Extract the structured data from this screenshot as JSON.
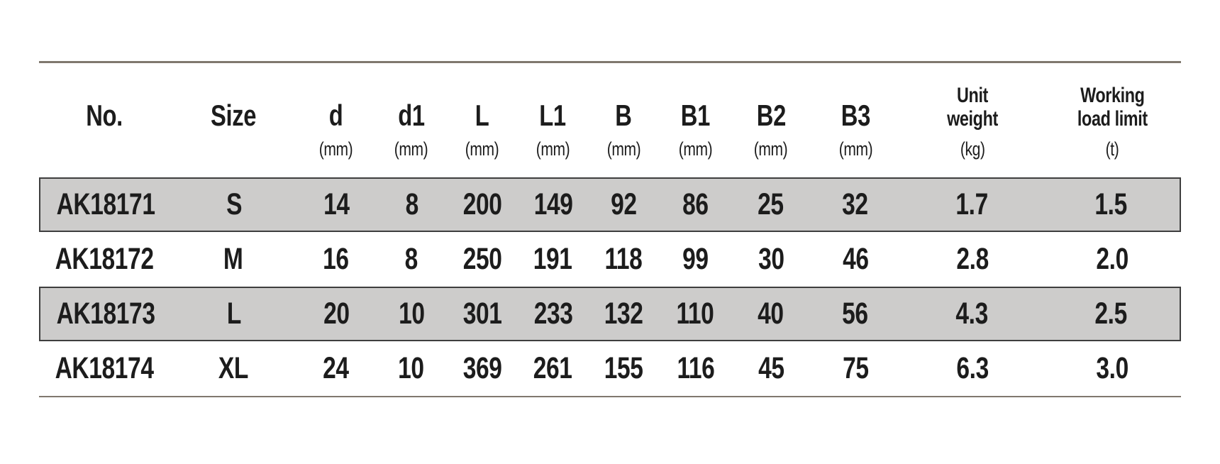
{
  "colors": {
    "background": "#ffffff",
    "stripe": "#cdcccb",
    "rule": "#80786e",
    "stripe_border": "#3e3e3e",
    "text": "#1c1c1c"
  },
  "chart_data": {
    "type": "table",
    "columns": [
      {
        "label": "No.",
        "unit": ""
      },
      {
        "label": "Size",
        "unit": ""
      },
      {
        "label": "d",
        "unit": "(mm)"
      },
      {
        "label": "d1",
        "unit": "(mm)"
      },
      {
        "label": "L",
        "unit": "(mm)"
      },
      {
        "label": "L1",
        "unit": "(mm)"
      },
      {
        "label": "B",
        "unit": "(mm)"
      },
      {
        "label": "B1",
        "unit": "(mm)"
      },
      {
        "label": "B2",
        "unit": "(mm)"
      },
      {
        "label": "B3",
        "unit": "(mm)"
      },
      {
        "label": "Unit\nweight",
        "unit": "(kg)"
      },
      {
        "label": "Working\nload limit",
        "unit": "(t)"
      }
    ],
    "rows": [
      [
        "AK18171",
        "S",
        "14",
        "8",
        "200",
        "149",
        "92",
        "86",
        "25",
        "32",
        "1.7",
        "1.5"
      ],
      [
        "AK18172",
        "M",
        "16",
        "8",
        "250",
        "191",
        "118",
        "99",
        "30",
        "46",
        "2.8",
        "2.0"
      ],
      [
        "AK18173",
        "L",
        "20",
        "10",
        "301",
        "233",
        "132",
        "110",
        "40",
        "56",
        "4.3",
        "2.5"
      ],
      [
        "AK18174",
        "XL",
        "24",
        "10",
        "369",
        "261",
        "155",
        "116",
        "45",
        "75",
        "6.3",
        "3.0"
      ]
    ]
  }
}
